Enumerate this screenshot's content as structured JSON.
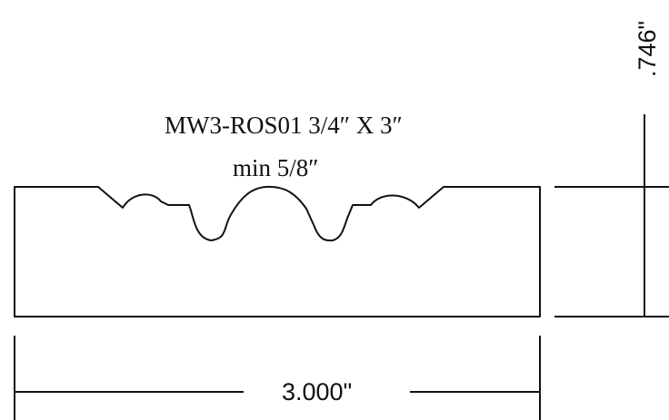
{
  "drawing": {
    "title_line1": "MW3-ROS01  3/4″ X  3″",
    "title_line2": "min  5/8″",
    "height_dimension": ".746\"",
    "width_dimension": "3.000\""
  }
}
